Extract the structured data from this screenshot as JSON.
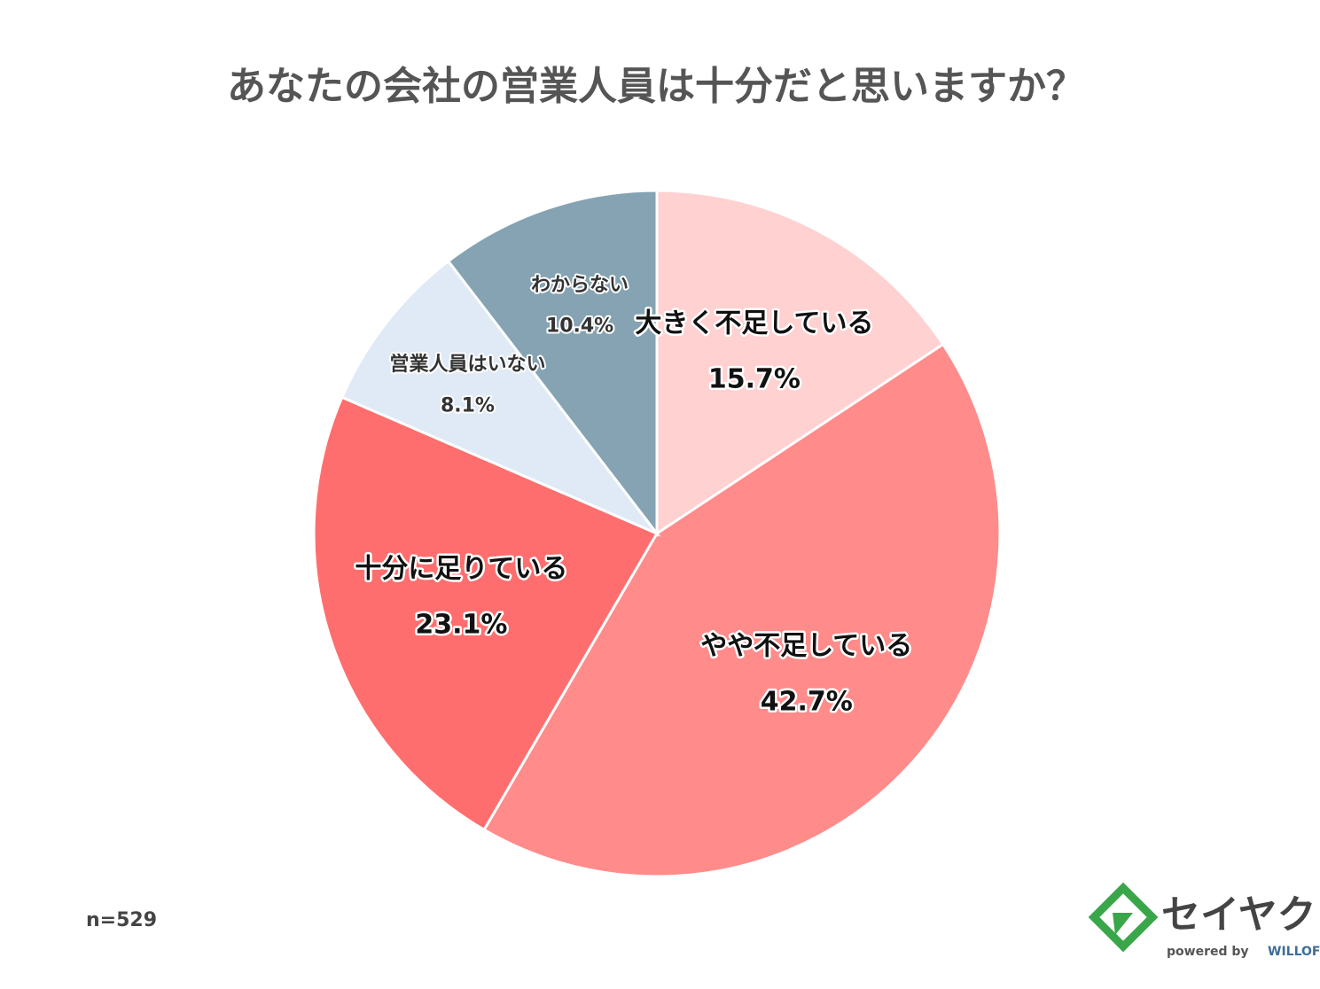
{
  "chart_data": {
    "type": "pie",
    "title": "あなたの会社の営業人員は十分だと思いますか？",
    "categories": [
      "大きく不足している",
      "やや不足している",
      "十分に足りている",
      "営業人員はいない",
      "わからない"
    ],
    "values": [
      15.7,
      42.7,
      23.1,
      8.1,
      10.4
    ],
    "value_labels": [
      "15.7%",
      "42.7%",
      "23.1%",
      "8.1%",
      "10.4%"
    ],
    "colors": [
      "#ffd1d1",
      "#ff8b8b",
      "#ff6e6e",
      "#dfeaf6",
      "#85a3b2"
    ],
    "note": "n=529"
  },
  "logo": {
    "name": "セイヤク",
    "tagline": "powered by",
    "brand": "WILLOF"
  }
}
